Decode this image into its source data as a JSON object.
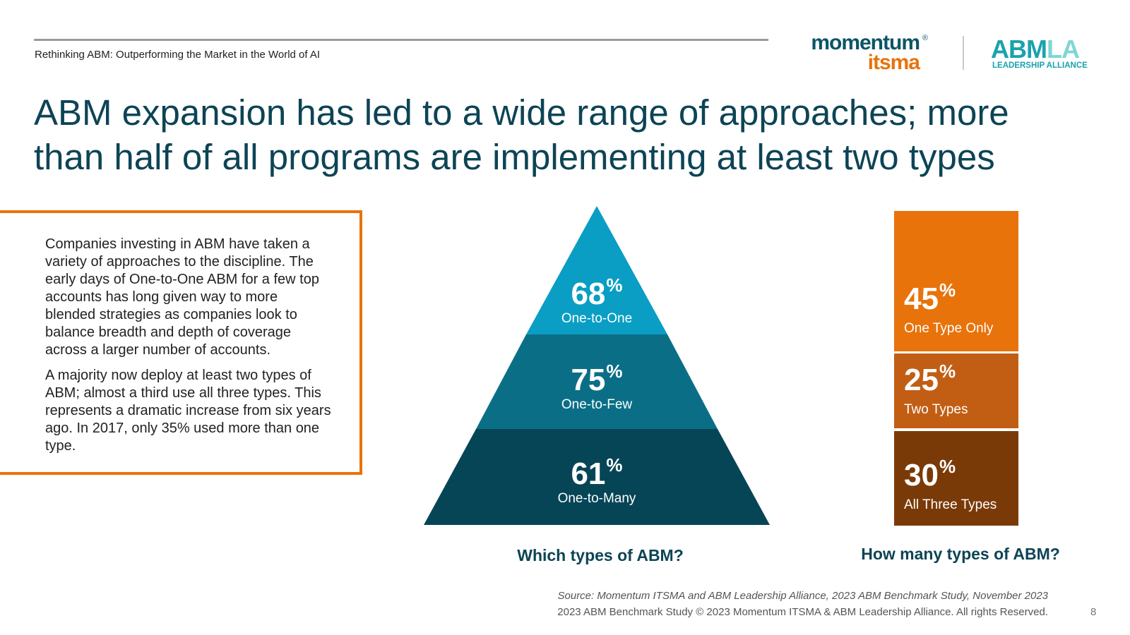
{
  "header": {
    "subtitle": "Rethinking ABM: Outperforming the Market in the World of AI",
    "logo_momentum_line1": "momentum",
    "logo_momentum_reg": "®",
    "logo_momentum_line2": "itsma",
    "logo_abmla_dark": "ABM",
    "logo_abmla_light": "LA",
    "logo_abmla_tagline": "LEADERSHIP ALLIANCE"
  },
  "headline": {
    "line1": "ABM expansion has led to a wide range of approaches; more",
    "line2": "than half of all programs are implementing at least two types"
  },
  "textbox": {
    "paragraph1": "Companies investing in ABM have taken a variety of approaches to the discipline. The early days of One-to-One ABM for a few top accounts has long given way to more blended strategies as companies look to balance breadth and depth of coverage across a larger number of accounts.",
    "paragraph2": "A majority now deploy at least two types of ABM; almost a third use all three types. This represents a dramatic increase from six years ago. In 2017, only 35% used more than one type."
  },
  "pyramid": {
    "caption": "Which types of ABM?",
    "percent_sign": "%",
    "tiers": [
      {
        "value": "68",
        "label": "One-to-One",
        "color": "#0a9ec4"
      },
      {
        "value": "75",
        "label": "One-to-Few",
        "color": "#0a6f86"
      },
      {
        "value": "61",
        "label": "One-to-Many",
        "color": "#064556"
      }
    ]
  },
  "stack": {
    "caption": "How many types of ABM?",
    "percent_sign": "%",
    "segments": [
      {
        "value": "45",
        "label": "One Type Only",
        "color": "#e8730b"
      },
      {
        "value": "25",
        "label": "Two Types",
        "color": "#c25e14"
      },
      {
        "value": "30",
        "label": "All Three Types",
        "color": "#7a3a08"
      }
    ]
  },
  "footer": {
    "source": "Source: Momentum ITSMA and ABM Leadership Alliance, 2023 ABM Benchmark Study, November 2023",
    "copyright": "2023 ABM Benchmark Study © 2023 Momentum ITSMA & ABM Leadership Alliance. All rights Reserved.",
    "page_number": "8"
  }
}
